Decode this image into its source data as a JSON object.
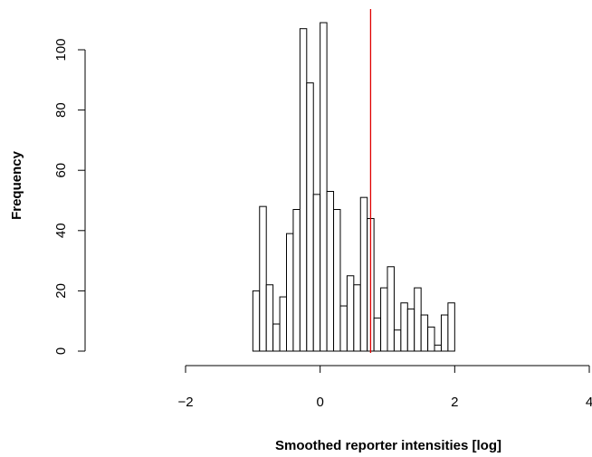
{
  "chart_data": {
    "type": "bar",
    "subtype": "histogram",
    "xlabel": "Smoothed reporter intensities [log]",
    "ylabel": "Frequency",
    "xlim": [
      -2,
      4
    ],
    "ylim": [
      0,
      110
    ],
    "x_ticks": [
      -2,
      0,
      2,
      4
    ],
    "y_ticks": [
      0,
      20,
      40,
      60,
      80,
      100
    ],
    "bin_width": 0.1,
    "bin_start": -1.0,
    "bin_counts": [
      20,
      48,
      22,
      9,
      18,
      39,
      47,
      107,
      89,
      52,
      109,
      53,
      47,
      15,
      25,
      22,
      51,
      44,
      11,
      21,
      28,
      7,
      16,
      14,
      21,
      12,
      8,
      2,
      12,
      16
    ],
    "vline": {
      "x": 0.75,
      "color": "#e00000"
    },
    "bar_fill": "#ffffff",
    "bar_stroke": "#000000"
  }
}
